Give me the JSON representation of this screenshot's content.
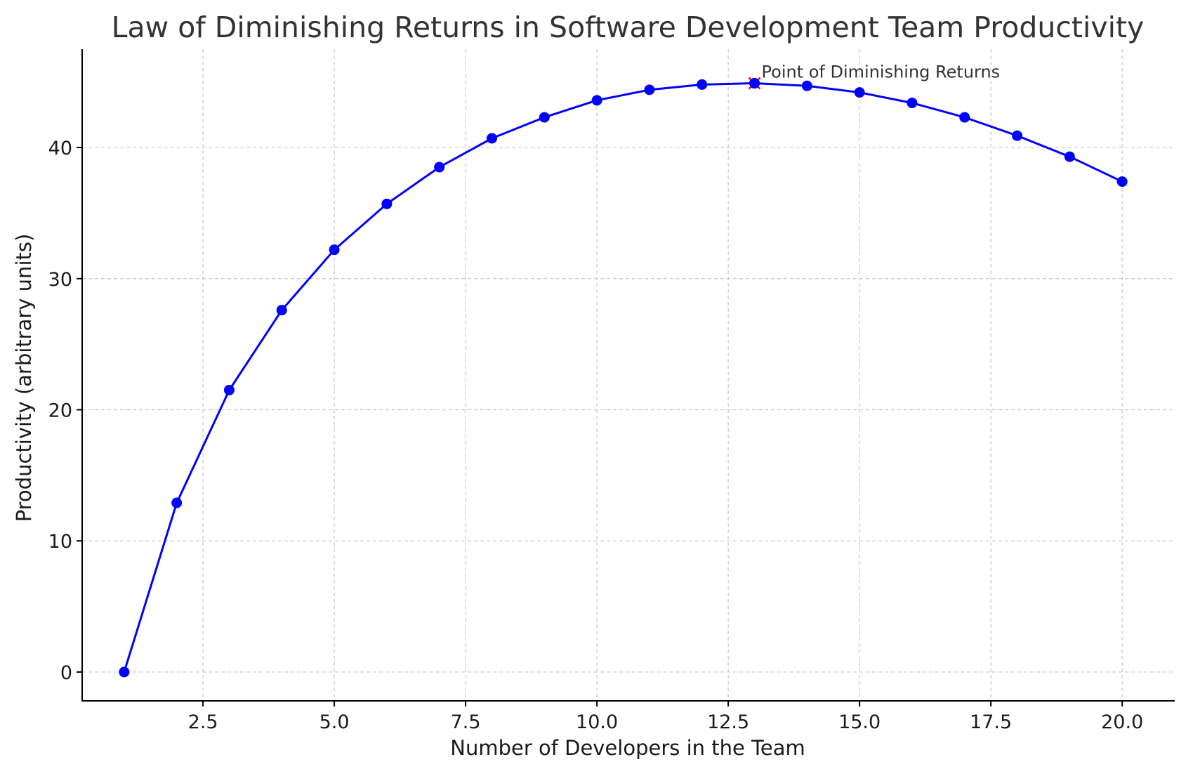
{
  "chart_data": {
    "type": "line",
    "title": "Law of Diminishing Returns in Software Development Team Productivity",
    "xlabel": "Number of Developers in the Team",
    "ylabel": "Productivity (arbitrary units)",
    "xlim": [
      0.2,
      21.0
    ],
    "ylim": [
      -2.2,
      47.5
    ],
    "x_ticks": [
      2.5,
      5.0,
      7.5,
      10.0,
      12.5,
      15.0,
      17.5,
      20.0
    ],
    "x_tick_labels": [
      "2.5",
      "5.0",
      "7.5",
      "10.0",
      "12.5",
      "15.0",
      "17.5",
      "20.0"
    ],
    "y_ticks": [
      0,
      10,
      20,
      30,
      40
    ],
    "y_tick_labels": [
      "0",
      "10",
      "20",
      "30",
      "40"
    ],
    "grid": true,
    "series": [
      {
        "color": "#0000ff",
        "marker": "circle",
        "x": [
          1,
          2,
          3,
          4,
          5,
          6,
          7,
          8,
          9,
          10,
          11,
          12,
          13,
          14,
          15,
          16,
          17,
          18,
          19,
          20
        ],
        "values": [
          0.0,
          12.9,
          21.5,
          27.6,
          32.2,
          35.7,
          38.5,
          40.7,
          42.3,
          43.6,
          44.4,
          44.8,
          44.9,
          44.7,
          44.2,
          43.4,
          42.3,
          40.9,
          39.3,
          37.4
        ]
      }
    ],
    "annotations": [
      {
        "text": "Point of Diminishing Returns",
        "x": 13,
        "y": 44.9,
        "marker": "x",
        "color": "#ff0000"
      }
    ]
  }
}
